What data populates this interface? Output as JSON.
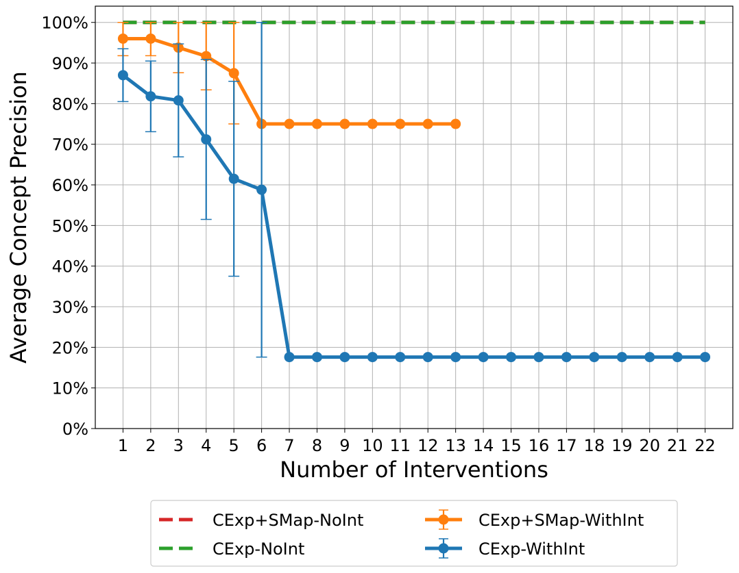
{
  "chart_data": {
    "type": "line",
    "title": "",
    "xlabel": "Number of Interventions",
    "ylabel": "Average Concept Precision",
    "xticks": [
      "1",
      "2",
      "3",
      "4",
      "5",
      "6",
      "7",
      "8",
      "9",
      "10",
      "11",
      "12",
      "13",
      "14",
      "15",
      "16",
      "17",
      "18",
      "19",
      "20",
      "21",
      "22"
    ],
    "yticks": [
      "0%",
      "10%",
      "20%",
      "30%",
      "40%",
      "50%",
      "60%",
      "70%",
      "80%",
      "90%",
      "100%"
    ],
    "xlim": [
      0,
      23
    ],
    "ylim": [
      0,
      1.04
    ],
    "grid": true,
    "legend_position": "bottom-center",
    "series": [
      {
        "name": "CExp+SMap-NoInt",
        "style": "dashed",
        "color": "#d62728",
        "x": [
          1,
          22
        ],
        "y": [
          1.0,
          1.0
        ]
      },
      {
        "name": "CExp-NoInt",
        "style": "dashed",
        "color": "#2ca02c",
        "x": [
          1,
          22
        ],
        "y": [
          1.0,
          1.0
        ]
      },
      {
        "name": "CExp+SMap-WithInt",
        "style": "solid-markers-errorbars",
        "color": "#ff7f0e",
        "x": [
          1,
          2,
          3,
          4,
          5,
          6,
          7,
          8,
          9,
          10,
          11,
          12,
          13
        ],
        "y": [
          0.96,
          0.96,
          0.938,
          0.917,
          0.875,
          0.75,
          0.75,
          0.75,
          0.75,
          0.75,
          0.75,
          0.75,
          0.75
        ],
        "err_low": [
          0.918,
          0.918,
          0.876,
          0.834,
          0.75,
          0.75,
          0.75,
          0.75,
          0.75,
          0.75,
          0.75,
          0.75,
          0.75
        ],
        "err_high": [
          1.0,
          1.0,
          1.0,
          1.0,
          1.0,
          0.75,
          0.75,
          0.75,
          0.75,
          0.75,
          0.75,
          0.75,
          0.75
        ]
      },
      {
        "name": "CExp-WithInt",
        "style": "solid-markers-errorbars",
        "color": "#1f77b4",
        "x": [
          1,
          2,
          3,
          4,
          5,
          6,
          7,
          8,
          9,
          10,
          11,
          12,
          13,
          14,
          15,
          16,
          17,
          18,
          19,
          20,
          21,
          22
        ],
        "y": [
          0.87,
          0.818,
          0.808,
          0.712,
          0.615,
          0.588,
          0.176,
          0.176,
          0.176,
          0.176,
          0.176,
          0.176,
          0.176,
          0.176,
          0.176,
          0.176,
          0.176,
          0.176,
          0.176,
          0.176,
          0.176,
          0.176
        ],
        "err_low": [
          0.805,
          0.731,
          0.669,
          0.515,
          0.375,
          0.176,
          0.176,
          0.176,
          0.176,
          0.176,
          0.176,
          0.176,
          0.176,
          0.176,
          0.176,
          0.176,
          0.176,
          0.176,
          0.176,
          0.176,
          0.176,
          0.176
        ],
        "err_high": [
          0.935,
          0.905,
          0.947,
          0.909,
          0.855,
          1.0,
          0.176,
          0.176,
          0.176,
          0.176,
          0.176,
          0.176,
          0.176,
          0.176,
          0.176,
          0.176,
          0.176,
          0.176,
          0.176,
          0.176,
          0.176,
          0.176
        ]
      }
    ],
    "legend": [
      {
        "label": "CExp+SMap-NoInt",
        "series": 0
      },
      {
        "label": "CExp-NoInt",
        "series": 1
      },
      {
        "label": "CExp+SMap-WithInt",
        "series": 2
      },
      {
        "label": "CExp-WithInt",
        "series": 3
      }
    ]
  }
}
